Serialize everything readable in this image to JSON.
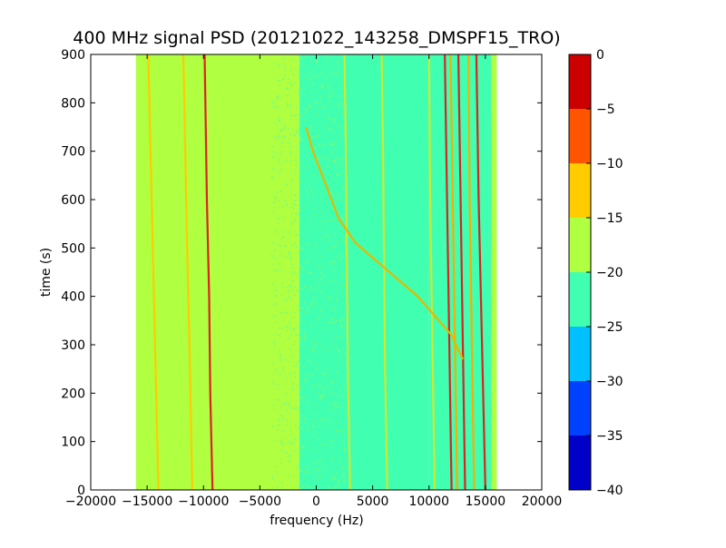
{
  "chart_data": {
    "type": "heatmap",
    "title": "400 MHz signal PSD (20121022_143258_DMSPF15_TRO)",
    "xlabel": "frequency (Hz)",
    "ylabel": "time (s)",
    "xlim": [
      -20000,
      20000
    ],
    "ylim": [
      0,
      900
    ],
    "xticks": [
      -20000,
      -15000,
      -10000,
      -5000,
      0,
      5000,
      10000,
      15000,
      20000
    ],
    "xtick_labels": [
      "−20000",
      "−15000",
      "−10000",
      "−5000",
      "0",
      "5000",
      "10000",
      "15000",
      "20000"
    ],
    "yticks": [
      0,
      100,
      200,
      300,
      400,
      500,
      600,
      700,
      800,
      900
    ],
    "ytick_labels": [
      "0",
      "100",
      "200",
      "300",
      "400",
      "500",
      "600",
      "700",
      "800",
      "900"
    ],
    "data_extent_x": [
      -16000,
      16000
    ],
    "colorbar": {
      "levels": [
        -40,
        -35,
        -30,
        -25,
        -20,
        -15,
        -10,
        -5,
        0
      ],
      "tick_labels": [
        "−40",
        "−35",
        "−30",
        "−25",
        "−20",
        "−15",
        "−10",
        "−5",
        "0"
      ],
      "colors": [
        "#0000c8",
        "#0040ff",
        "#00c0ff",
        "#40ffb0",
        "#b0ff40",
        "#ffcc00",
        "#ff5500",
        "#cc0000"
      ]
    },
    "background_regions": [
      {
        "x": [
          -16000,
          -1500
        ],
        "level": -17,
        "color": "#b0ff40"
      },
      {
        "x": [
          -1500,
          10000
        ],
        "level": -22,
        "color": "#40ffb0"
      },
      {
        "x": [
          10000,
          16000
        ],
        "level": -22,
        "color": "#40ffb0"
      },
      {
        "x": [
          15500,
          16000
        ],
        "level": -17,
        "color": "#b0ff40"
      }
    ],
    "series": [
      {
        "level": -3,
        "color": "#dd2222",
        "points": [
          [
            -9200,
            0
          ],
          [
            -9400,
            200
          ],
          [
            -9500,
            400
          ],
          [
            -9700,
            600
          ],
          [
            -9800,
            750
          ],
          [
            -9900,
            900
          ]
        ]
      },
      {
        "level": -12,
        "color": "#ffcc00",
        "points": [
          [
            -14000,
            0
          ],
          [
            -14300,
            300
          ],
          [
            -14600,
            600
          ],
          [
            -14800,
            800
          ],
          [
            -14900,
            900
          ]
        ]
      },
      {
        "level": -12,
        "color": "#ffcc00",
        "points": [
          [
            -11000,
            0
          ],
          [
            -11200,
            250
          ],
          [
            -11500,
            550
          ],
          [
            -11700,
            800
          ],
          [
            -11800,
            900
          ]
        ]
      },
      {
        "level": -15,
        "color": "#cfe830",
        "points": [
          [
            3000,
            0
          ],
          [
            2800,
            250
          ],
          [
            2700,
            500
          ],
          [
            2600,
            750
          ],
          [
            2500,
            900
          ]
        ]
      },
      {
        "level": -15,
        "color": "#cfe830",
        "points": [
          [
            6300,
            0
          ],
          [
            6100,
            250
          ],
          [
            6000,
            500
          ],
          [
            5900,
            750
          ],
          [
            5800,
            900
          ]
        ]
      },
      {
        "level": -15,
        "color": "#cfe830",
        "points": [
          [
            10500,
            0
          ],
          [
            10300,
            300
          ],
          [
            10100,
            600
          ],
          [
            10000,
            900
          ]
        ]
      },
      {
        "level": -5,
        "color": "#dd2222",
        "points": [
          [
            12000,
            0
          ],
          [
            11800,
            300
          ],
          [
            11600,
            600
          ],
          [
            11400,
            900
          ]
        ]
      },
      {
        "level": -5,
        "color": "#dd2222",
        "points": [
          [
            13200,
            0
          ],
          [
            13000,
            300
          ],
          [
            12800,
            600
          ],
          [
            12600,
            900
          ]
        ]
      },
      {
        "level": -5,
        "color": "#dd2222",
        "points": [
          [
            15000,
            0
          ],
          [
            14700,
            300
          ],
          [
            14400,
            600
          ],
          [
            14200,
            900
          ]
        ]
      },
      {
        "level": -10,
        "color": "#ffaa00",
        "points": [
          [
            12500,
            0
          ],
          [
            12300,
            300
          ],
          [
            12100,
            600
          ],
          [
            11900,
            900
          ]
        ]
      },
      {
        "level": -10,
        "color": "#ffaa00",
        "points": [
          [
            14000,
            0
          ],
          [
            13800,
            300
          ],
          [
            13600,
            600
          ],
          [
            13500,
            900
          ]
        ]
      },
      {
        "level": -12,
        "color": "#e6b800",
        "points": [
          [
            13000,
            270
          ],
          [
            12000,
            320
          ],
          [
            10500,
            360
          ],
          [
            9000,
            400
          ],
          [
            6000,
            460
          ],
          [
            3500,
            510
          ],
          [
            2000,
            560
          ],
          [
            700,
            640
          ],
          [
            -300,
            700
          ],
          [
            -900,
            750
          ]
        ]
      }
    ]
  }
}
